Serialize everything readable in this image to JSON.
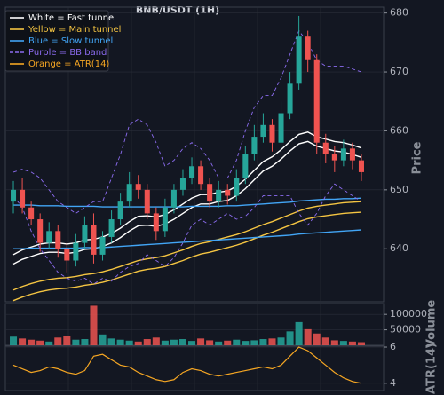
{
  "chart_data": {
    "type": "candlestick",
    "title": "BNB/USDT (1H)",
    "ylabel": "Price",
    "ylim": [
      631,
      681
    ],
    "yticks": [
      640,
      650,
      660,
      670,
      680
    ],
    "grid": true,
    "legend": "upper left",
    "up_color": "#26a69a",
    "down_color": "#ef5350",
    "open": [
      648,
      650,
      647,
      645,
      641,
      643,
      640,
      638,
      641,
      644,
      639,
      642,
      645,
      648,
      651,
      650,
      646,
      643,
      647,
      650,
      652,
      654,
      651,
      648,
      650,
      649,
      652,
      656,
      659,
      661,
      658,
      663,
      668,
      676,
      672,
      658,
      656,
      655,
      657,
      655
    ],
    "high": [
      651.5,
      652,
      648,
      646,
      644.5,
      644,
      641,
      642.5,
      645.5,
      646,
      643,
      646.5,
      649.5,
      653,
      652.5,
      651,
      647,
      648.5,
      651,
      653.5,
      655.5,
      655,
      652,
      651.5,
      651,
      653.5,
      657.5,
      661,
      663,
      662,
      665,
      670,
      679.5,
      677,
      673,
      659.5,
      657.5,
      658.5,
      658,
      656
    ],
    "low": [
      646,
      646,
      644,
      639.5,
      640,
      638.5,
      636,
      637,
      640,
      637.5,
      638,
      641,
      644,
      647,
      648.5,
      645,
      641.5,
      642,
      646,
      649,
      651,
      650,
      647,
      647,
      647.5,
      648,
      651,
      655,
      658,
      656.5,
      657,
      662,
      667,
      670,
      656,
      654.5,
      653,
      654,
      653.5,
      651.5
    ],
    "close": [
      650,
      647,
      645,
      641,
      643,
      640,
      638,
      641,
      644,
      639,
      642,
      645,
      648,
      651,
      650,
      646,
      643,
      647,
      650,
      652,
      654,
      651,
      648,
      650,
      649,
      652,
      656,
      659,
      661,
      658,
      663,
      668,
      676,
      672,
      658,
      656,
      655,
      657,
      655,
      653
    ],
    "series": [
      {
        "name": "White = Fast tunnel",
        "color": "#ffffff",
        "dash": false,
        "upper": [
          639,
          639.8,
          640.3,
          640.8,
          641,
          641,
          640.8,
          641,
          641.5,
          641.6,
          642,
          642.6,
          643.5,
          644.6,
          645.5,
          645.6,
          645.4,
          645.8,
          646.6,
          647.6,
          648.6,
          649.2,
          649.2,
          649.6,
          649.8,
          650.6,
          651.8,
          653.3,
          654.8,
          655.6,
          656.8,
          658.2,
          659.4,
          659.8,
          659,
          658.6,
          658.2,
          658,
          657.6,
          657.1
        ],
        "lower": [
          637.4,
          638.2,
          638.7,
          639.2,
          639.4,
          639.4,
          639.2,
          639.4,
          639.9,
          640,
          640.4,
          641,
          641.9,
          643,
          643.9,
          644,
          643.8,
          644.2,
          645,
          646,
          647,
          647.6,
          647.6,
          648,
          648.2,
          649,
          650.2,
          651.7,
          653.2,
          654,
          655.2,
          656.6,
          657.8,
          658.2,
          657.4,
          657,
          656.6,
          656.4,
          656,
          655.5
        ]
      },
      {
        "name": "Yellow = Main tunnel",
        "color": "#f5c542",
        "dash": false,
        "upper": [
          633,
          633.6,
          634.1,
          634.5,
          634.8,
          635,
          635.1,
          635.3,
          635.6,
          635.8,
          636.1,
          636.5,
          637,
          637.5,
          638,
          638.3,
          638.5,
          638.8,
          639.3,
          639.8,
          640.4,
          640.9,
          641.2,
          641.6,
          642,
          642.4,
          642.9,
          643.5,
          644.1,
          644.6,
          645.2,
          645.8,
          646.4,
          646.9,
          647.2,
          647.4,
          647.6,
          647.8,
          647.9,
          648
        ],
        "lower": [
          631.2,
          631.8,
          632.3,
          632.7,
          633,
          633.2,
          633.3,
          633.5,
          633.8,
          634,
          634.3,
          634.7,
          635.2,
          635.7,
          636.2,
          636.5,
          636.7,
          637,
          637.5,
          638,
          638.6,
          639.1,
          639.4,
          639.8,
          640.2,
          640.6,
          641.1,
          641.7,
          642.3,
          642.8,
          643.4,
          644,
          644.6,
          645.1,
          645.4,
          645.6,
          645.8,
          646,
          646.1,
          646.2
        ]
      },
      {
        "name": "Blue = Slow tunnel",
        "color": "#42a5f5",
        "dash": false,
        "upper": [
          647.4,
          647.4,
          647.4,
          647.3,
          647.3,
          647.3,
          647.2,
          647.2,
          647.2,
          647.2,
          647.1,
          647.1,
          647.1,
          647.1,
          647.1,
          647.1,
          647.1,
          647.1,
          647.1,
          647.1,
          647.2,
          647.2,
          647.2,
          647.2,
          647.3,
          647.3,
          647.4,
          647.5,
          647.6,
          647.7,
          647.8,
          647.9,
          648.1,
          648.2,
          648.3,
          648.4,
          648.4,
          648.5,
          648.5,
          648.6
        ],
        "lower": [
          640,
          640,
          640.1,
          640.1,
          640.1,
          640.1,
          640.1,
          640.1,
          640.2,
          640.2,
          640.2,
          640.3,
          640.4,
          640.5,
          640.6,
          640.7,
          640.8,
          640.9,
          641,
          641.1,
          641.2,
          641.3,
          641.4,
          641.5,
          641.6,
          641.7,
          641.8,
          641.9,
          642,
          642.1,
          642.2,
          642.3,
          642.5,
          642.6,
          642.7,
          642.8,
          642.9,
          643,
          643.1,
          643.2
        ]
      },
      {
        "name": "Purple = BB band",
        "color": "#8c6cf0",
        "dash": true,
        "upper": [
          653,
          653.5,
          653,
          652,
          650,
          648,
          647,
          646,
          647,
          648,
          648,
          652,
          656,
          661,
          662,
          661,
          658,
          654,
          655,
          657,
          658,
          657,
          655,
          652,
          652,
          655,
          660,
          664,
          666,
          666,
          669,
          673,
          677,
          675,
          672,
          671,
          671,
          671,
          670.5,
          670
        ],
        "lower": [
          649,
          647,
          643,
          640,
          638,
          636,
          635,
          634.5,
          635,
          634,
          635,
          634.5,
          636,
          637,
          637.5,
          639,
          638,
          637,
          638.5,
          641,
          644,
          645,
          644,
          645,
          646,
          645,
          645.5,
          647,
          649,
          649,
          649,
          649,
          646,
          644,
          646,
          649,
          651,
          650,
          649,
          648
        ]
      }
    ],
    "volume": {
      "ylabel": "Volume",
      "ylim": [
        0,
        135000
      ],
      "yticks": [
        50000,
        100000
      ],
      "values": [
        28000,
        22000,
        18000,
        15000,
        12000,
        25000,
        30000,
        18000,
        20000,
        128000,
        35000,
        22000,
        18000,
        15000,
        12000,
        20000,
        25000,
        15000,
        18000,
        20000,
        14000,
        22000,
        16000,
        12000,
        15000,
        18000,
        14000,
        16000,
        20000,
        22000,
        25000,
        45000,
        75000,
        52000,
        38000,
        25000,
        16000,
        14000,
        12000,
        10000
      ]
    },
    "atr": {
      "name": "Orange = ATR(14)",
      "ylabel": "ATR(14)",
      "color": "#f5a623",
      "ylim": [
        3.6,
        6.05
      ],
      "yticks": [
        4,
        6
      ],
      "values": [
        5.0,
        4.8,
        4.6,
        4.7,
        4.9,
        4.8,
        4.6,
        4.5,
        4.7,
        5.5,
        5.6,
        5.3,
        5.0,
        4.9,
        4.6,
        4.4,
        4.2,
        4.1,
        4.2,
        4.6,
        4.8,
        4.7,
        4.5,
        4.4,
        4.5,
        4.6,
        4.7,
        4.8,
        4.9,
        4.8,
        5.0,
        5.5,
        6.0,
        5.8,
        5.4,
        5.0,
        4.6,
        4.3,
        4.1,
        4.0
      ]
    }
  }
}
